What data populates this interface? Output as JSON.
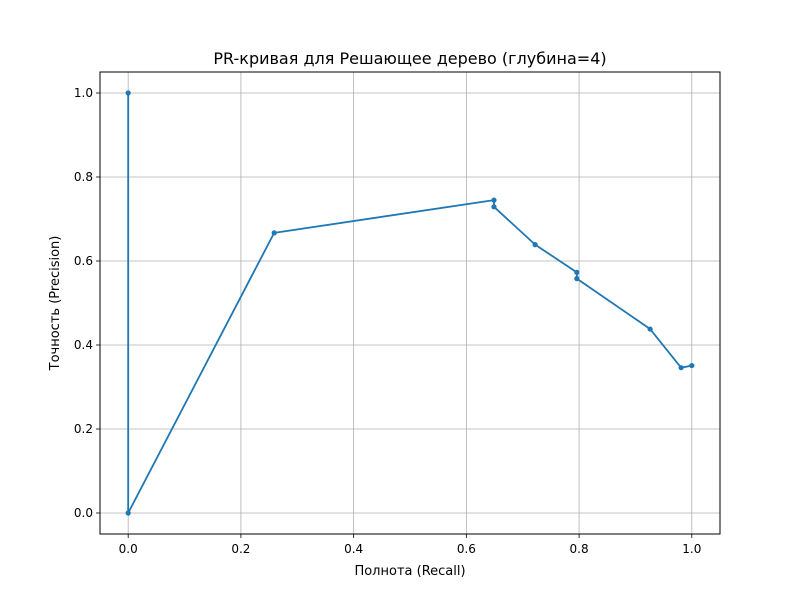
{
  "chart_data": {
    "type": "line",
    "title": "PR-кривая для Решающее дерево (глубина=4)",
    "xlabel": "Полнота (Recall)",
    "ylabel": "Точность (Precision)",
    "xlim": [
      -0.05,
      1.05
    ],
    "ylim": [
      -0.05,
      1.05
    ],
    "x_ticks": [
      "0.0",
      "0.2",
      "0.4",
      "0.6",
      "0.8",
      "1.0"
    ],
    "y_ticks": [
      "0.0",
      "0.2",
      "0.4",
      "0.6",
      "0.8",
      "1.0"
    ],
    "grid": true,
    "line_color": "#1f77b4",
    "series": [
      {
        "x": [
          0.0,
          0.0,
          0.259,
          0.649,
          0.649,
          0.722,
          0.796,
          0.796,
          0.926,
          0.981,
          1.0
        ],
        "y": [
          1.0,
          0.0,
          0.667,
          0.745,
          0.729,
          0.639,
          0.573,
          0.558,
          0.438,
          0.346,
          0.351
        ]
      }
    ]
  }
}
